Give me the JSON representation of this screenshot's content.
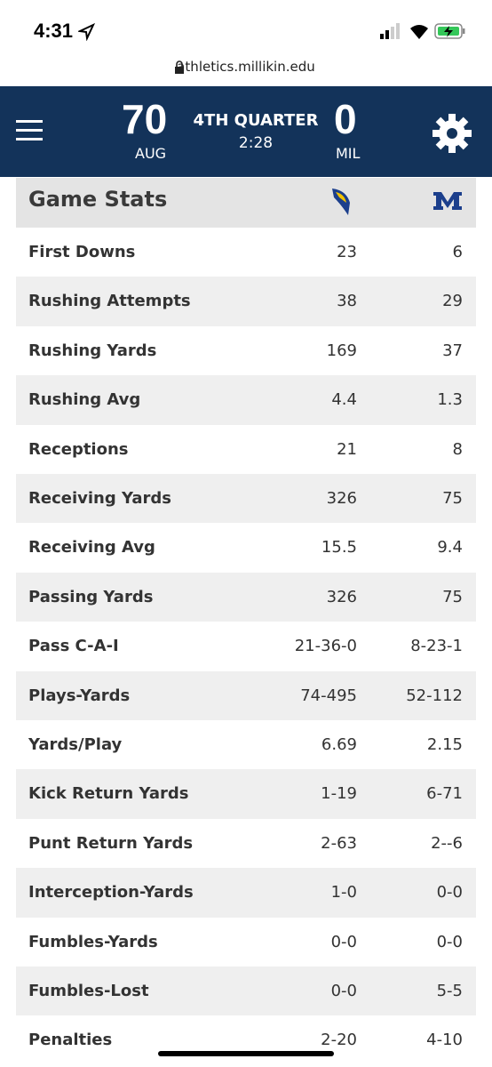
{
  "status_bar": {
    "time": "4:31"
  },
  "browser": {
    "url": "athletics.millikin.edu"
  },
  "scoreboard": {
    "home_score": "70",
    "home_team": "AUG",
    "period": "4TH QUARTER",
    "clock": "2:28",
    "away_score": "0",
    "away_team": "MIL"
  },
  "stats": {
    "title": "Game Stats",
    "rows": [
      [
        "First Downs",
        "23",
        "6"
      ],
      [
        "Rushing Attempts",
        "38",
        "29"
      ],
      [
        "Rushing Yards",
        "169",
        "37"
      ],
      [
        "Rushing Avg",
        "4.4",
        "1.3"
      ],
      [
        "Receptions",
        "21",
        "8"
      ],
      [
        "Receiving Yards",
        "326",
        "75"
      ],
      [
        "Receiving Avg",
        "15.5",
        "9.4"
      ],
      [
        "Passing Yards",
        "326",
        "75"
      ],
      [
        "Pass C-A-I",
        "21-36-0",
        "8-23-1"
      ],
      [
        "Plays-Yards",
        "74-495",
        "52-112"
      ],
      [
        "Yards/Play",
        "6.69",
        "2.15"
      ],
      [
        "Kick Return Yards",
        "1-19",
        "6-71"
      ],
      [
        "Punt Return Yards",
        "2-63",
        "2--6"
      ],
      [
        "Interception-Yards",
        "1-0",
        "0-0"
      ],
      [
        "Fumbles-Yards",
        "0-0",
        "0-0"
      ],
      [
        "Fumbles-Lost",
        "0-0",
        "5-5"
      ],
      [
        "Penalties",
        "2-20",
        "4-10"
      ]
    ]
  }
}
